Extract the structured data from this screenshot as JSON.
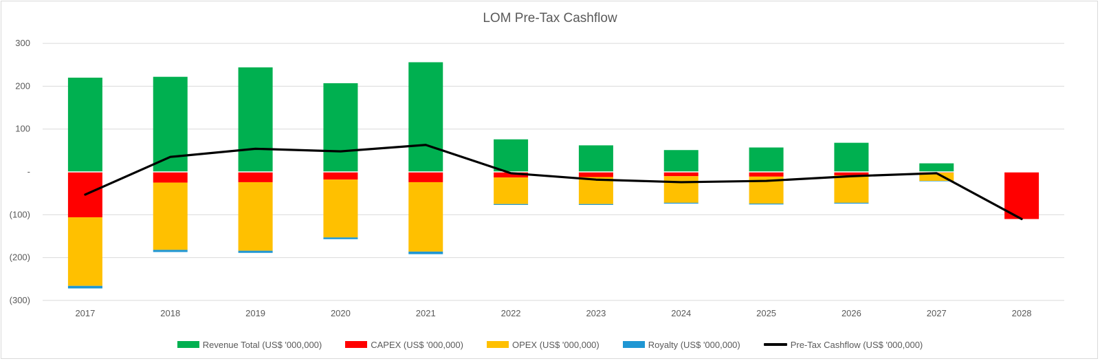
{
  "chart_data": {
    "type": "bar",
    "stacked": true,
    "title": "LOM Pre-Tax Cashflow",
    "xlabel": "",
    "ylabel": "",
    "ylim": [
      -300,
      300
    ],
    "yticks": [
      300,
      200,
      100,
      0,
      -100,
      -200,
      -300
    ],
    "ytick_labels": [
      "300",
      "200",
      "100",
      "-",
      "(100)",
      "(200)",
      "(300)"
    ],
    "grid": true,
    "legend_position": "bottom",
    "categories": [
      "2017",
      "2018",
      "2019",
      "2020",
      "2021",
      "2022",
      "2023",
      "2024",
      "2025",
      "2026",
      "2027",
      "2028"
    ],
    "series": [
      {
        "name": "Revenue Total (US$ '000,000)",
        "type": "bar",
        "color": "#00B050",
        "values": [
          220,
          222,
          244,
          207,
          256,
          76,
          62,
          51,
          57,
          68,
          20,
          0
        ]
      },
      {
        "name": "CAPEX (US$ '000,000)",
        "type": "bar",
        "color": "#FF0000",
        "values": [
          -106,
          -25,
          -24,
          -18,
          -24,
          -13,
          -12,
          -10,
          -11,
          -8,
          -2,
          -110
        ]
      },
      {
        "name": "OPEX (US$ '000,000)",
        "type": "bar",
        "color": "#FFC000",
        "values": [
          -160,
          -157,
          -160,
          -135,
          -162,
          -62,
          -63,
          -62,
          -63,
          -64,
          -19,
          0
        ]
      },
      {
        "name": "Royalty (US$ '000,000)",
        "type": "bar",
        "color": "#1F96D3",
        "values": [
          -6,
          -5,
          -5,
          -4,
          -6,
          -2,
          -2,
          -2,
          -2,
          -2,
          -1,
          0
        ]
      },
      {
        "name": "Pre-Tax Cashflow (US$ '000,000)",
        "type": "line",
        "color": "#000000",
        "values": [
          -53,
          35,
          54,
          48,
          63,
          -3,
          -18,
          -24,
          -21,
          -10,
          -3,
          -110
        ]
      }
    ]
  }
}
